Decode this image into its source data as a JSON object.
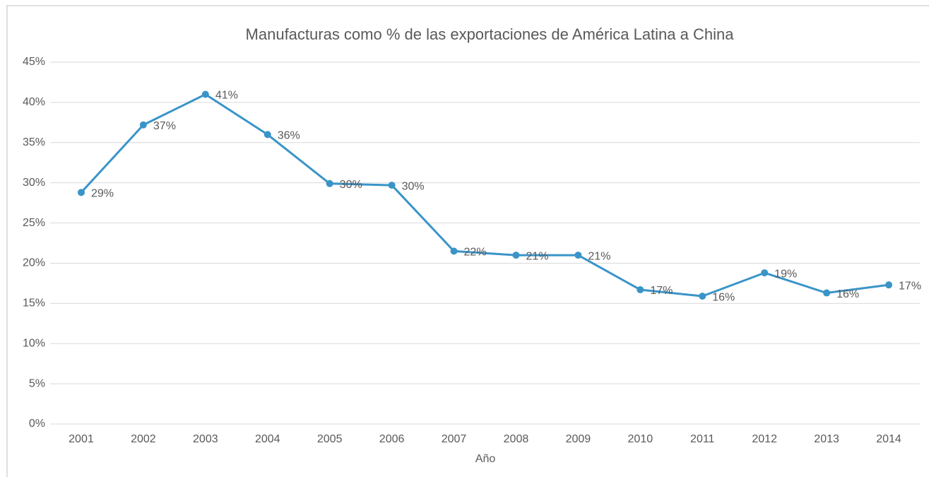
{
  "chart_data": {
    "type": "line",
    "title": "Manufacturas como %  de las exportaciones de América Latina a China",
    "x_label": "Año",
    "categories": [
      "2001",
      "2002",
      "2003",
      "2004",
      "2005",
      "2006",
      "2007",
      "2008",
      "2009",
      "2010",
      "2011",
      "2012",
      "2013",
      "2014"
    ],
    "series": [
      {
        "name": "Manufacturas",
        "color": "#3a94c8",
        "values": [
          28.8,
          37.2,
          41.0,
          36.0,
          29.9,
          29.7,
          21.5,
          21.0,
          21.0,
          16.7,
          15.9,
          18.8,
          16.3,
          17.3
        ],
        "value_labels": [
          "29%",
          "37%",
          "41%",
          "36%",
          "30%",
          "30%",
          "22%",
          "21%",
          "21%",
          "17%",
          "16%",
          "19%",
          "16%",
          "17%"
        ]
      }
    ],
    "ylim": [
      0,
      45
    ],
    "yticks": [
      {
        "value": 0,
        "label": "0%"
      },
      {
        "value": 5,
        "label": "5%"
      },
      {
        "value": 10,
        "label": "10%"
      },
      {
        "value": 15,
        "label": "15%"
      },
      {
        "value": 20,
        "label": "20%"
      },
      {
        "value": 25,
        "label": "25%"
      },
      {
        "value": 30,
        "label": "30%"
      },
      {
        "value": 35,
        "label": "35%"
      },
      {
        "value": 40,
        "label": "40%"
      },
      {
        "value": 45,
        "label": "45%"
      }
    ],
    "grid": true
  }
}
